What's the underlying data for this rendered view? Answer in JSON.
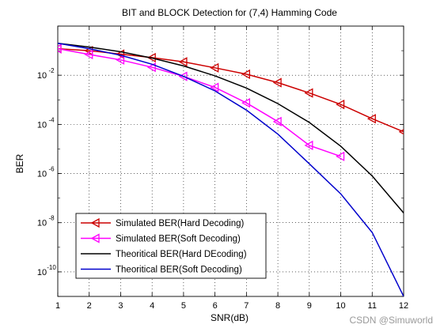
{
  "chart_data": {
    "type": "line",
    "title": "BIT and BLOCK Detection for (7,4) Hamming Code",
    "xlabel": "SNR(dB)",
    "ylabel": "BER",
    "xlim": [
      1,
      12
    ],
    "ylim": [
      1e-11,
      1
    ],
    "yscale": "log",
    "grid": true,
    "legend_position": "bottom-left",
    "xticks": [
      "1",
      "2",
      "3",
      "4",
      "5",
      "6",
      "7",
      "8",
      "9",
      "10",
      "11",
      "12"
    ],
    "ytick_exponents": [
      "-2",
      "-4",
      "-6",
      "-8",
      "-10"
    ],
    "series": [
      {
        "name": "Simulated BER(Hard Decoding)",
        "color": "#cc0000",
        "marker": "triangle-left",
        "x": [
          1,
          2,
          3,
          4,
          5,
          6,
          7,
          8,
          9,
          10,
          11,
          12
        ],
        "y": [
          0.12,
          0.1,
          0.072,
          0.052,
          0.035,
          0.02,
          0.011,
          0.005,
          0.0019,
          0.00065,
          0.00017,
          5e-05
        ]
      },
      {
        "name": "Simulated BER(Soft Decoding)",
        "color": "#ff00ff",
        "marker": "triangle-left",
        "x": [
          1,
          2,
          3,
          4,
          5,
          6,
          7,
          8,
          9,
          10
        ],
        "y": [
          0.12,
          0.07,
          0.042,
          0.021,
          0.009,
          0.0032,
          0.00075,
          0.00013,
          1.4e-05,
          5e-06
        ]
      },
      {
        "name": "Theoritical BER(Hard DEcoding)",
        "color": "#000000",
        "marker": "none",
        "x": [
          1,
          2,
          3,
          4,
          5,
          6,
          7,
          8,
          9,
          10,
          11,
          12
        ],
        "y": [
          0.2,
          0.14,
          0.09,
          0.05,
          0.024,
          0.0095,
          0.003,
          0.0007,
          0.00012,
          1.3e-05,
          8e-07,
          2.5e-08
        ]
      },
      {
        "name": "Theoritical BER(Soft Decoding)",
        "color": "#0000cc",
        "marker": "none",
        "x": [
          1,
          2,
          3,
          4,
          5,
          6,
          7,
          8,
          9,
          10,
          11,
          12
        ],
        "y": [
          0.2,
          0.12,
          0.065,
          0.028,
          0.009,
          0.0023,
          0.00038,
          4e-05,
          2.5e-06,
          1.5e-07,
          4e-09,
          1e-11
        ]
      }
    ]
  },
  "watermark": "CSDN @Simuworld"
}
